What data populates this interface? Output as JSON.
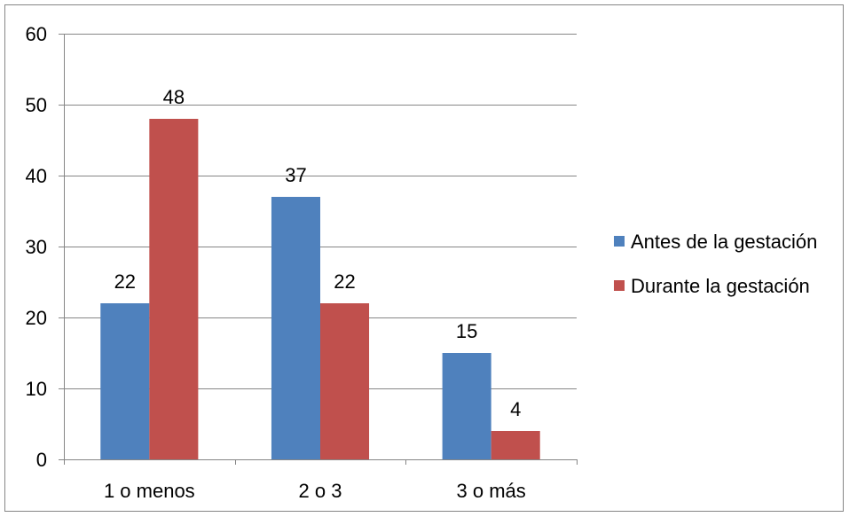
{
  "chart_data": {
    "type": "bar",
    "categories": [
      "1 o menos",
      "2 o 3",
      "3 o más"
    ],
    "series": [
      {
        "name": "Antes de la gestación",
        "values": [
          22,
          37,
          15
        ],
        "color": "#4F81BD"
      },
      {
        "name": "Durante la gestación",
        "values": [
          48,
          22,
          4
        ],
        "color": "#C0504D"
      }
    ],
    "ylim": [
      0,
      60
    ],
    "yticks": [
      0,
      10,
      20,
      30,
      40,
      50,
      60
    ],
    "grid": true,
    "data_labels": true,
    "legend": "right",
    "colors": {
      "gridline": "#868686",
      "axis": "#868686",
      "border": "#868686",
      "text": "#000000"
    }
  }
}
